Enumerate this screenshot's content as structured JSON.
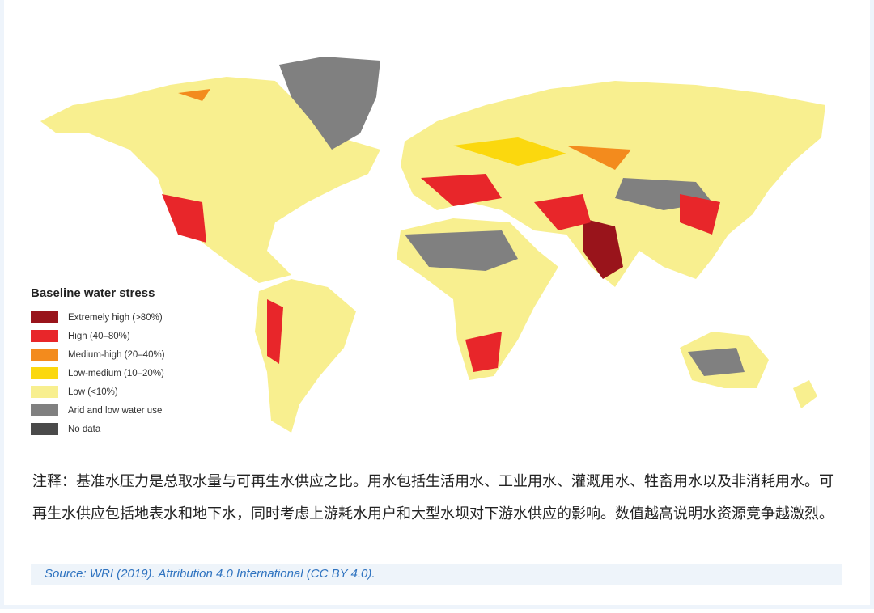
{
  "legend": {
    "title": "Baseline water stress",
    "items": [
      {
        "label": "Extremely high (>80%)",
        "color": "#99141b"
      },
      {
        "label": "High (40–80%)",
        "color": "#e8262a"
      },
      {
        "label": "Medium-high (20–40%)",
        "color": "#f38b1d"
      },
      {
        "label": "Low-medium (10–20%)",
        "color": "#fbd80e"
      },
      {
        "label": "Low (<10%)",
        "color": "#f8ef8f"
      },
      {
        "label": "Arid and low water use",
        "color": "#808080"
      },
      {
        "label": "No data",
        "color": "#4a4a4a"
      }
    ]
  },
  "note": "注释：基准水压力是总取水量与可再生水供应之比。用水包括生活用水、工业用水、灌溉用水、牲畜用水以及非消耗用水。可再生水供应包括地表水和地下水，同时考虑上游耗水用户和大型水坝对下游水供应的影响。数值越高说明水资源竞争越激烈。",
  "source": "Source: WRI (2019). Attribution 4.0 International (CC BY 4.0)."
}
